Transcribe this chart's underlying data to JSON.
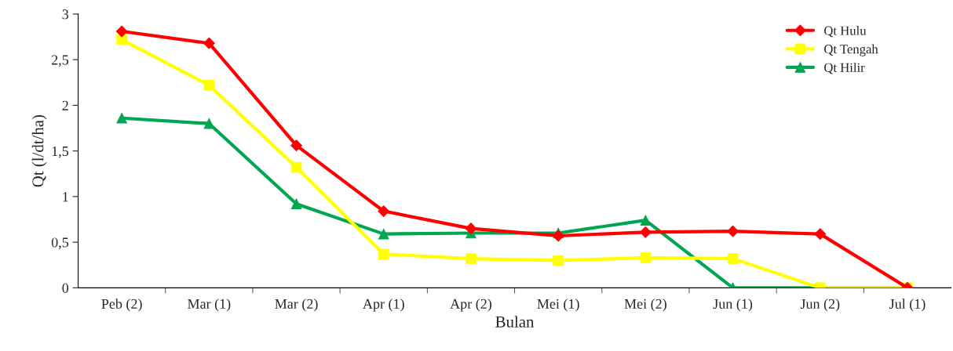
{
  "chart_data": {
    "type": "line",
    "xlabel": "Bulan",
    "ylabel": "Qt (l/dt/ha)",
    "categories": [
      "Peb (2)",
      "Mar (1)",
      "Mar (2)",
      "Apr (1)",
      "Apr (2)",
      "Mei (1)",
      "Mei (2)",
      "Jun (1)",
      "Jun (2)",
      "Jul (1)"
    ],
    "series": [
      {
        "name": "Qt Hulu",
        "color": "#ff0000",
        "marker": "diamond",
        "values": [
          2.81,
          2.68,
          1.56,
          0.84,
          0.65,
          0.57,
          0.61,
          0.62,
          0.59,
          0
        ]
      },
      {
        "name": "Qt Tengah",
        "color": "#ffff00",
        "marker": "square",
        "values": [
          2.72,
          2.22,
          1.32,
          0.37,
          0.32,
          0.3,
          0.33,
          0.32,
          0,
          0
        ]
      },
      {
        "name": "Qt Hilir",
        "color": "#00a651",
        "marker": "triangle",
        "values": [
          1.86,
          1.8,
          0.92,
          0.59,
          0.6,
          0.6,
          0.74,
          0,
          0,
          0
        ]
      }
    ],
    "ylim": [
      0,
      3
    ],
    "yticks": [
      0,
      {
        "value": 0.5,
        "label": "0,5"
      },
      1,
      {
        "value": 1.5,
        "label": "1,5"
      },
      2,
      {
        "value": 2.5,
        "label": "2,5"
      },
      3
    ],
    "grid": false,
    "legend": "top right",
    "line_style": "solid"
  }
}
